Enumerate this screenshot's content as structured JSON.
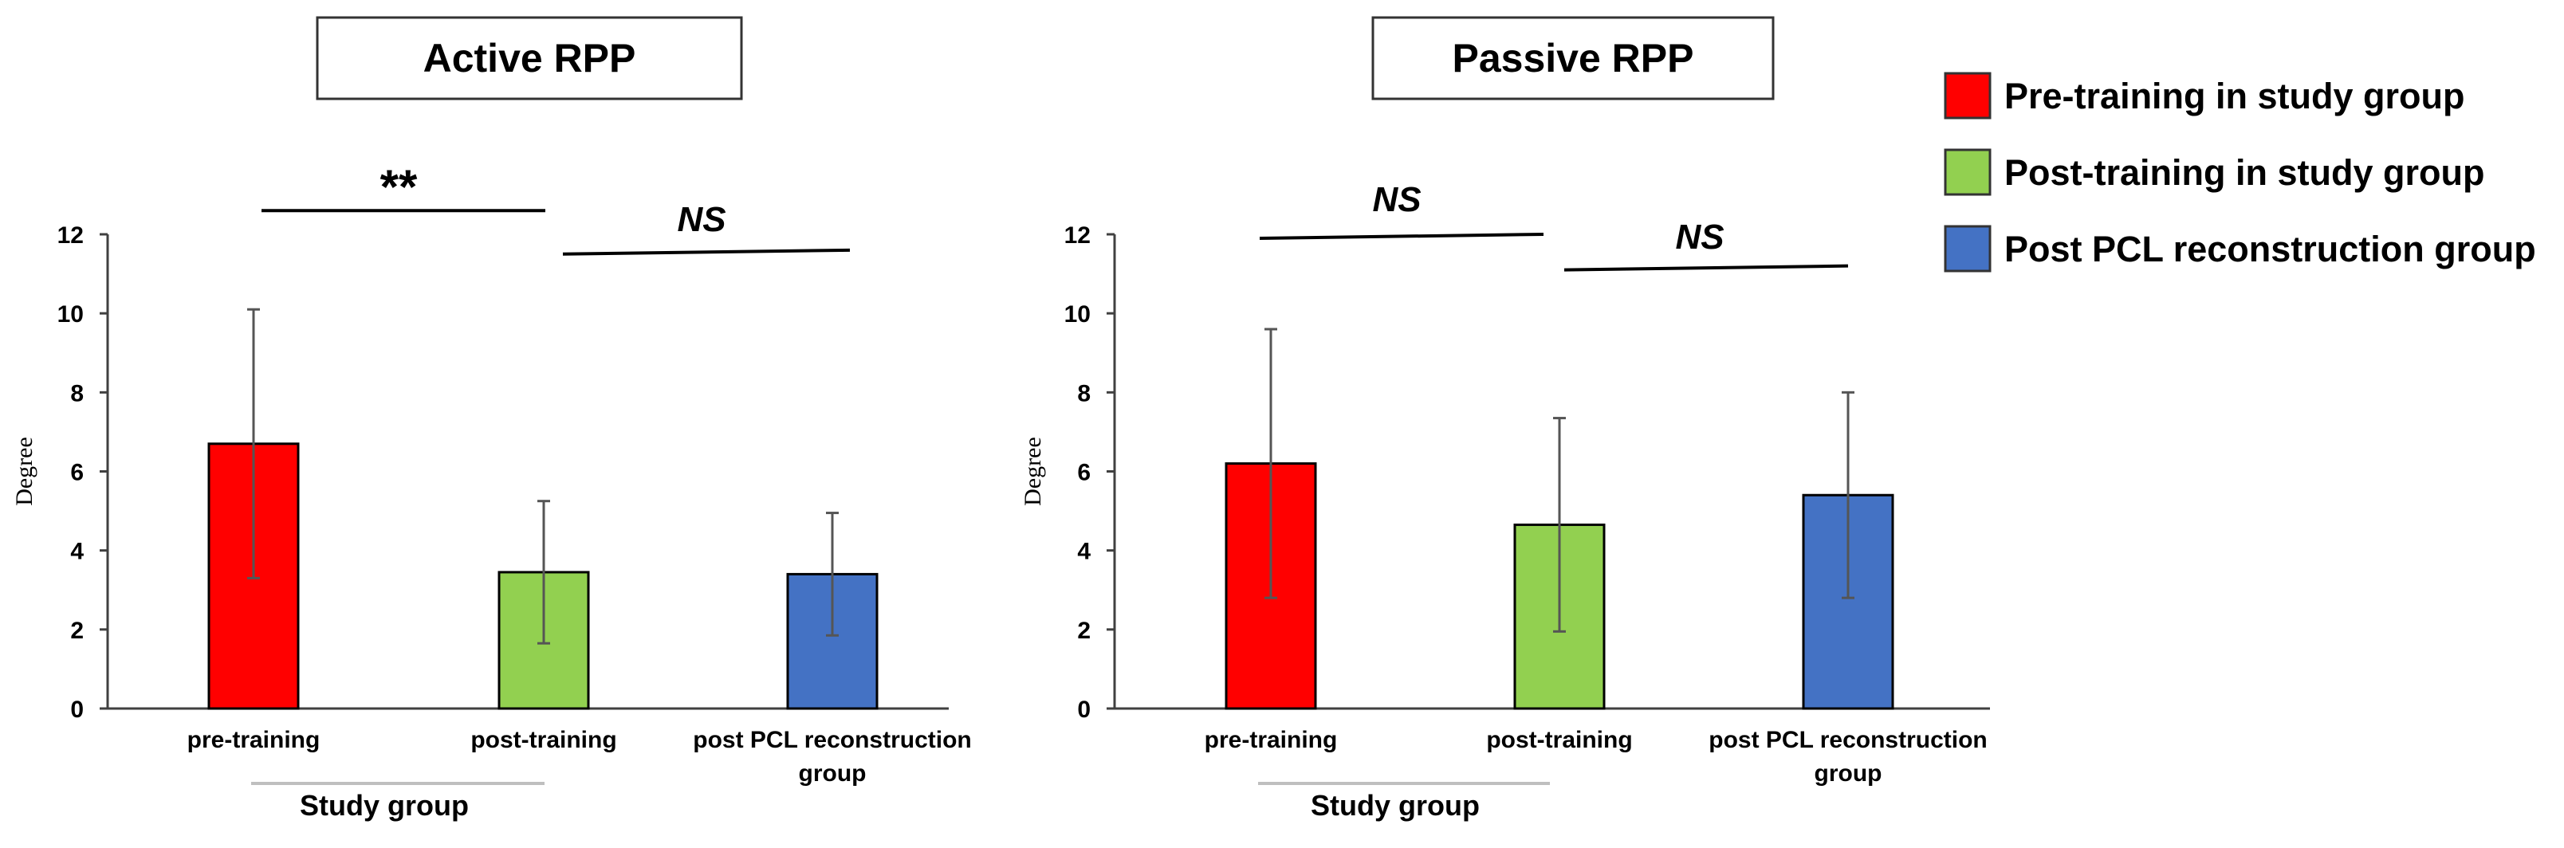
{
  "chart_data": [
    {
      "type": "bar",
      "title": "Active RPP",
      "ylabel": "Degree",
      "ylim": [
        0,
        12
      ],
      "yticks": [
        0,
        2,
        4,
        6,
        8,
        10,
        12
      ],
      "categories": [
        {
          "lines": [
            "pre-training"
          ]
        },
        {
          "lines": [
            "post-training"
          ]
        },
        {
          "lines": [
            "post PCL reconstruction",
            "group"
          ]
        }
      ],
      "values": [
        6.7,
        3.45,
        3.4
      ],
      "errors": [
        3.4,
        1.8,
        1.55
      ],
      "colors": [
        "#ff0000",
        "#92d050",
        "#4472c4"
      ],
      "group_label": "Study group",
      "significance": [
        {
          "text": "**",
          "from_y": 12.6,
          "to_y": 12.6
        },
        {
          "text": "NS",
          "from_y": 11.5,
          "to_y": 11.6
        }
      ]
    },
    {
      "type": "bar",
      "title": "Passive RPP",
      "ylabel": "Degree",
      "ylim": [
        0,
        12
      ],
      "yticks": [
        0,
        2,
        4,
        6,
        8,
        10,
        12
      ],
      "categories": [
        {
          "lines": [
            "pre-training"
          ]
        },
        {
          "lines": [
            "post-training"
          ]
        },
        {
          "lines": [
            "post PCL reconstruction",
            "group"
          ]
        }
      ],
      "values": [
        6.2,
        4.65,
        5.4
      ],
      "errors": [
        3.4,
        2.7,
        2.6
      ],
      "colors": [
        "#ff0000",
        "#92d050",
        "#4472c4"
      ],
      "group_label": "Study group",
      "significance": [
        {
          "text": "NS",
          "from_y": 11.9,
          "to_y": 12.0
        },
        {
          "text": "NS",
          "from_y": 11.1,
          "to_y": 11.2
        }
      ]
    }
  ],
  "legend": {
    "placement": "top-right",
    "entries": [
      {
        "label": "Pre-training in study group",
        "color": "#ff0000"
      },
      {
        "label": "Post-training in study group",
        "color": "#92d050"
      },
      {
        "label": "Post PCL reconstruction group",
        "color": "#4472c4"
      }
    ]
  }
}
